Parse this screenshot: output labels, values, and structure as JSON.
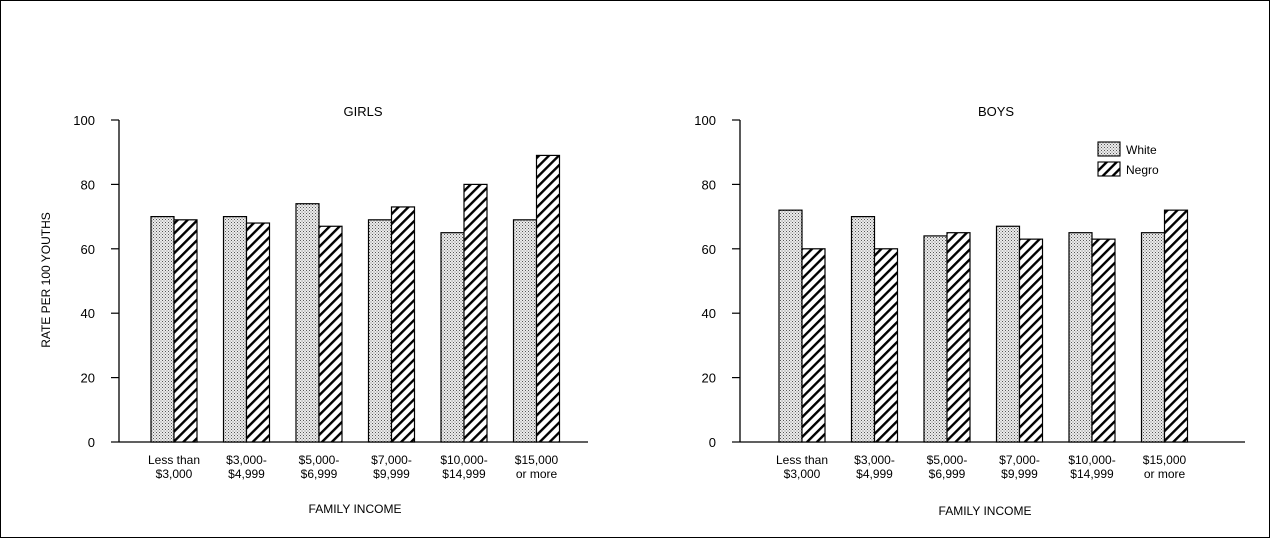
{
  "chart_data": [
    {
      "type": "bar",
      "title": "GIRLS",
      "xlabel": "FAMILY INCOME",
      "ylabel": "RATE PER 100 YOUTHS",
      "ylim": [
        0,
        100
      ],
      "yticks": [
        0,
        20,
        40,
        60,
        80,
        100
      ],
      "categories": [
        [
          "Less than",
          "$3,000"
        ],
        [
          "$3,000-",
          "$4,999"
        ],
        [
          "$5,000-",
          "$6,999"
        ],
        [
          "$7,000-",
          "$9,999"
        ],
        [
          "$10,000-",
          "$14,999"
        ],
        [
          "$15,000",
          "or more"
        ]
      ],
      "series": [
        {
          "name": "White",
          "values": [
            70,
            70,
            74,
            69,
            65,
            69
          ]
        },
        {
          "name": "Negro",
          "values": [
            69,
            68,
            67,
            73,
            80,
            89
          ]
        }
      ],
      "legend": "none",
      "grid": false
    },
    {
      "type": "bar",
      "title": "BOYS",
      "xlabel": "FAMILY INCOME",
      "ylabel": "",
      "ylim": [
        0,
        100
      ],
      "yticks": [
        0,
        20,
        40,
        60,
        80,
        100
      ],
      "categories": [
        [
          "Less than",
          "$3,000"
        ],
        [
          "$3,000-",
          "$4,999"
        ],
        [
          "$5,000-",
          "$6,999"
        ],
        [
          "$7,000-",
          "$9,999"
        ],
        [
          "$10,000-",
          "$14,999"
        ],
        [
          "$15,000",
          "or more"
        ]
      ],
      "series": [
        {
          "name": "White",
          "values": [
            72,
            70,
            64,
            67,
            65,
            65
          ]
        },
        {
          "name": "Negro",
          "values": [
            60,
            60,
            65,
            63,
            63,
            72
          ]
        }
      ],
      "legend": "top-right",
      "grid": false
    }
  ],
  "colors": {
    "white_fill": "#d6d6d6",
    "stroke": "#000000"
  }
}
